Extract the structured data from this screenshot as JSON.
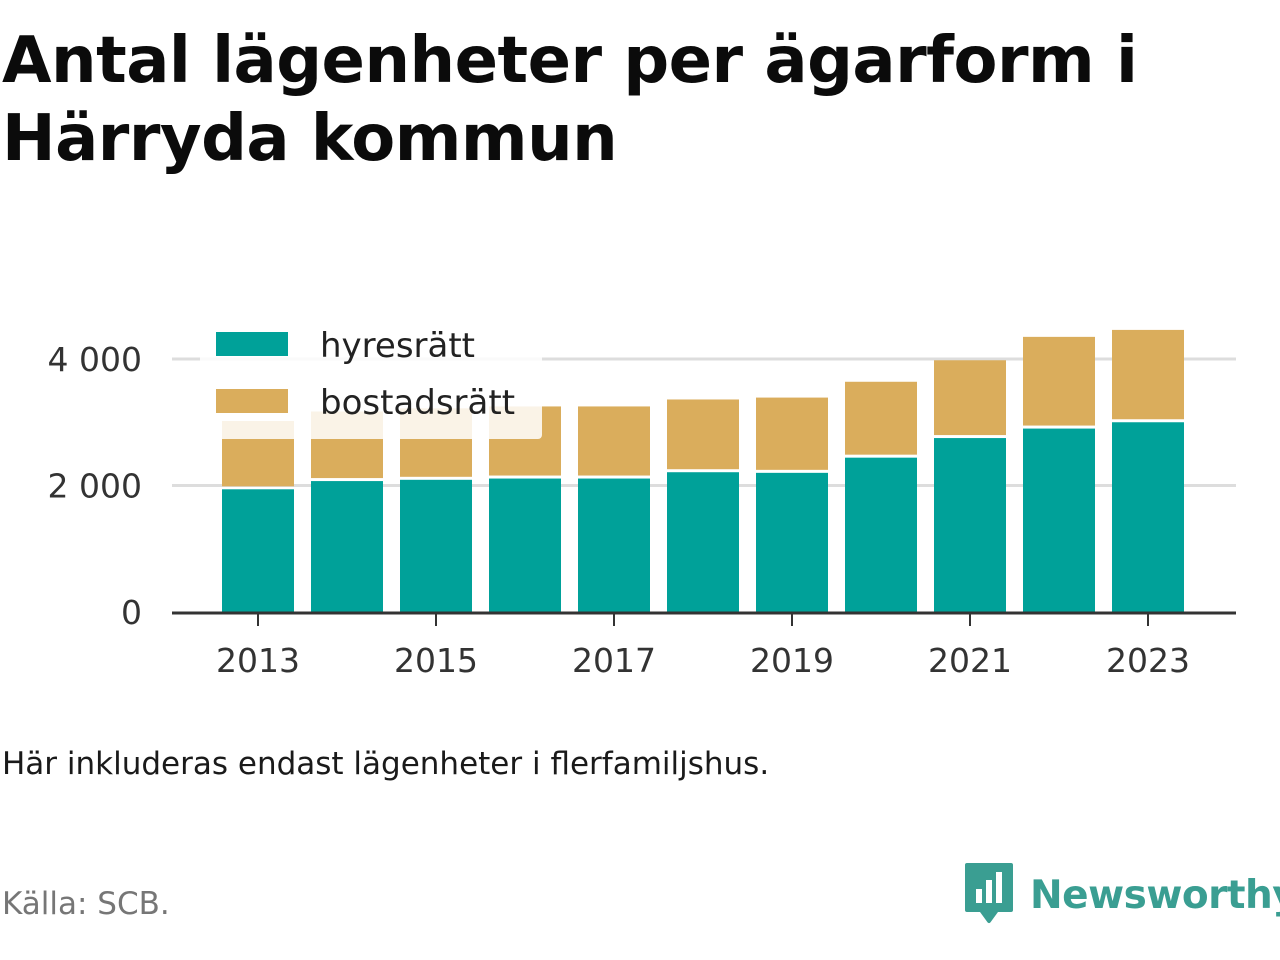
{
  "title": "Antal lägenheter per ägarform i Härryda kommun",
  "note": "Här inkluderas endast lägenheter i flerfamiljshus.",
  "source": "Källa: SCB.",
  "brand": {
    "name": "Newsworthy",
    "icon": "newsworthy-logo-icon",
    "color": "#3a9e92"
  },
  "colors": {
    "hyresratt": "#00a199",
    "bostadsratt": "#daad5c",
    "grid": "#dddddd",
    "axis": "#333333"
  },
  "chart_data": {
    "type": "bar",
    "stacked": true,
    "categories": [
      "2013",
      "2014",
      "2015",
      "2016",
      "2017",
      "2018",
      "2019",
      "2020",
      "2021",
      "2022",
      "2023"
    ],
    "x_tick_labels": [
      "2013",
      "2015",
      "2017",
      "2019",
      "2021",
      "2023"
    ],
    "series": [
      {
        "name": "hyresrätt",
        "values": [
          1940,
          2070,
          2090,
          2110,
          2110,
          2210,
          2200,
          2440,
          2750,
          2900,
          3000
        ]
      },
      {
        "name": "bostadsrätt",
        "values": [
          1080,
          1100,
          1130,
          1140,
          1140,
          1150,
          1190,
          1200,
          1230,
          1450,
          1460
        ]
      }
    ],
    "y_ticks": [
      0,
      2000,
      4000
    ],
    "y_tick_labels": [
      "0",
      "2 000",
      "4 000"
    ],
    "ylim": [
      0,
      4700
    ],
    "grid": true,
    "legend_position": "top-left"
  }
}
